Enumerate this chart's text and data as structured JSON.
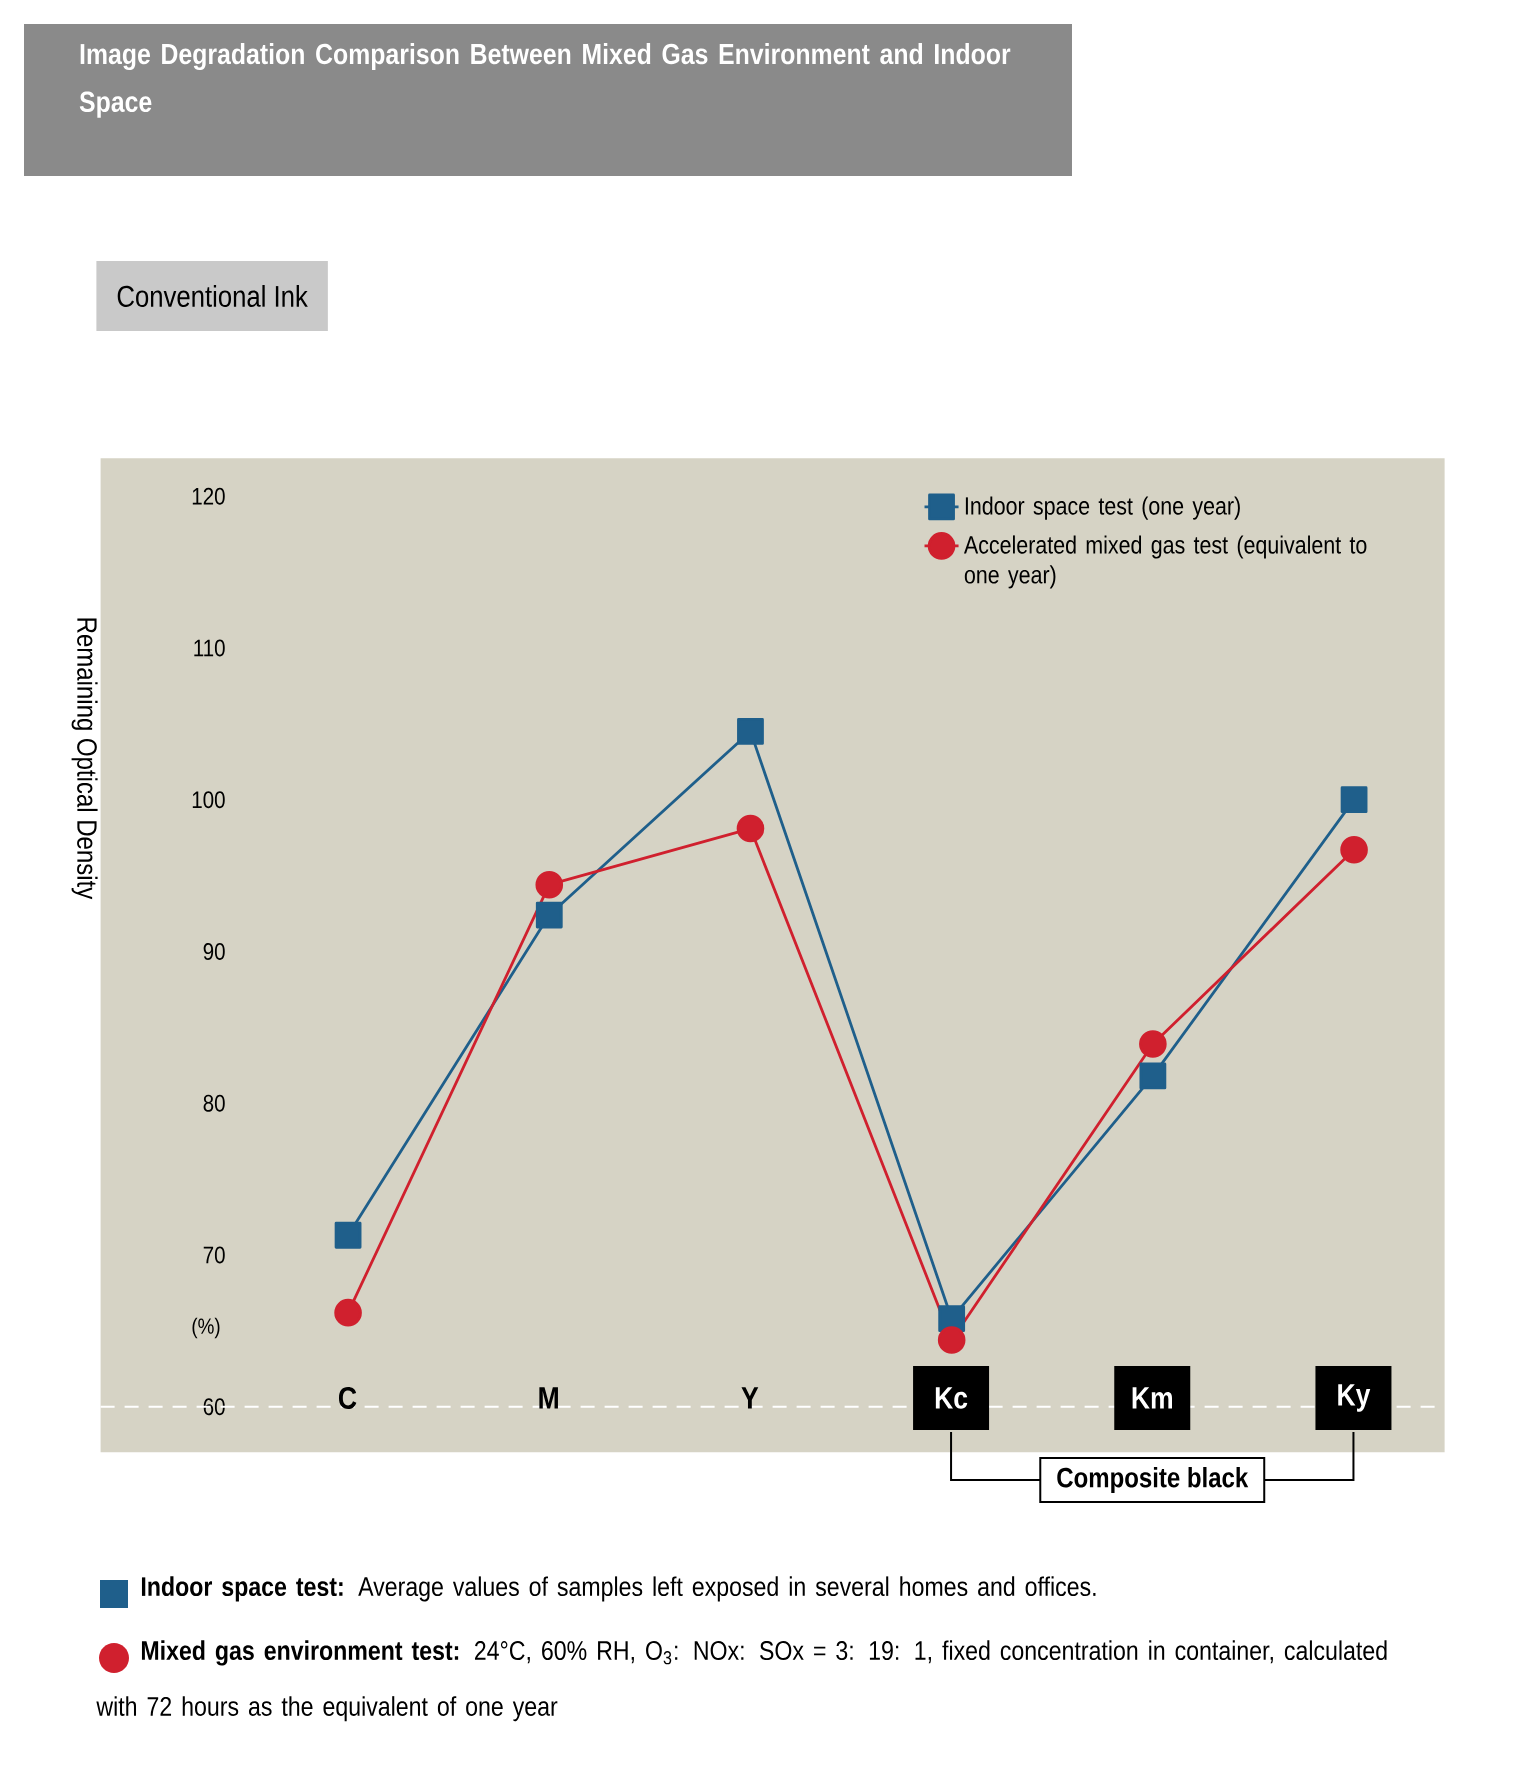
{
  "chart_data": {
    "type": "line",
    "title": "Image Degradation Comparison Between Mixed Gas Environment and Indoor Space",
    "subtitle": "Conventional Ink",
    "ylabel": "Remaining Optical Density",
    "categories": [
      "C",
      "M",
      "Y",
      "Kc",
      "Km",
      "Ky"
    ],
    "series": [
      {
        "name": "Indoor space test (one year)",
        "color": "#1f5f8b",
        "marker": "square",
        "values": [
          71.3,
          92.4,
          104.5,
          65.8,
          81.8,
          100.0
        ]
      },
      {
        "name": "Accelerated mixed gas test (equivalent to one year)",
        "color": "#d0202e",
        "marker": "circle",
        "values": [
          66.2,
          94.4,
          98.1,
          64.4,
          83.9,
          96.7
        ]
      }
    ],
    "ylim": [
      57,
      122.5
    ],
    "yticks": [
      {
        "value": 60,
        "label": "60"
      },
      70,
      80,
      90,
      100,
      110,
      120
    ],
    "ref_lines": [
      {
        "axis": "y",
        "value": 60,
        "color": "#ffffff",
        "line_style": "dashed"
      }
    ],
    "legend": "top right",
    "grid": false,
    "annotations": [
      "(%)",
      "Composite black",
      "**Indoor space test:** Average values of samples left exposed in several homes and offices.",
      "**Mixed gas environment test:** 24°C, 60% RH, O$_{3}$: NOx: SOx = 3: 19: 1, fixed concentration in container, calculated with 72 hours as the equivalent of one year"
    ]
  }
}
